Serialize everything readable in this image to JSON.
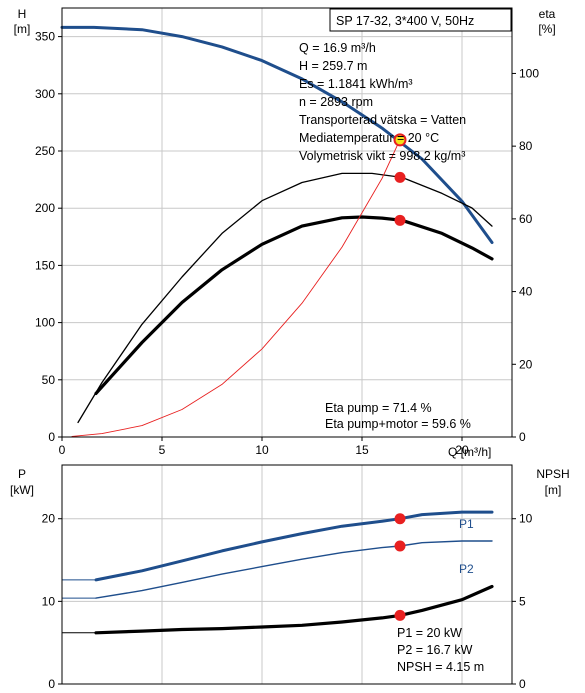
{
  "header": {
    "title": "SP 17-32, 3*400 V, 50Hz"
  },
  "top_chart": {
    "y_left_label": [
      "H",
      "[m]"
    ],
    "y_right_label": [
      "eta",
      "[%]"
    ],
    "x_label": "Q [m³/h]",
    "info_lines": [
      "Q = 16.9 m³/h",
      "H = 259.7 m",
      "Es = 1.1841 kWh/m³",
      "n = 2893 rpm",
      "Transporterad vätska = Vatten",
      "Mediatemperatur = 20 °C",
      "Volymetrisk vikt = 998.2 kg/m³"
    ],
    "eta_lines": [
      "Eta pump = 71.4 %",
      "Eta pump+motor = 59.6 %"
    ]
  },
  "bottom_chart": {
    "y_left_label": [
      "P",
      "[kW]"
    ],
    "y_right_label": [
      "NPSH",
      "[m]"
    ],
    "info_lines": [
      "P1 = 20 kW",
      "P2 = 16.7 kW",
      "NPSH = 4.15 m"
    ]
  },
  "chart_data": [
    {
      "type": "line",
      "title": "SP 17-32, 3*400 V, 50Hz",
      "xlabel": "Q [m³/h]",
      "ylabel": "H [m]",
      "y2label": "eta [%]",
      "xlim": [
        0,
        22.5
      ],
      "ylim": [
        0,
        375
      ],
      "y2lim": [
        0,
        118
      ],
      "xticks": [
        0,
        5,
        10,
        15,
        20
      ],
      "yticks": [
        0,
        50,
        100,
        150,
        200,
        250,
        300,
        350
      ],
      "y2ticks": [
        0,
        20,
        40,
        60,
        80,
        100
      ],
      "grid": true,
      "duty_point": {
        "x": 16.9,
        "H": 259.7,
        "eta_pump": 71.4,
        "eta_pump_motor": 59.6
      },
      "series": [
        {
          "axis": "left",
          "color": "#1f4e8c",
          "width": 3,
          "points": [
            [
              0,
              358
            ],
            [
              1.6,
              358
            ],
            [
              4,
              356
            ],
            [
              6,
              350
            ],
            [
              8,
              341
            ],
            [
              10,
              329
            ],
            [
              12,
              313
            ],
            [
              14,
              293
            ],
            [
              16,
              270
            ],
            [
              18,
              243
            ],
            [
              20,
              206
            ],
            [
              21.5,
              170
            ]
          ]
        },
        {
          "axis": "left",
          "color": "#1f4e8c",
          "width": 1,
          "points": [
            [
              0,
              358
            ],
            [
              1.6,
              358
            ]
          ]
        },
        {
          "axis": "right",
          "color": "#000000",
          "width": 1.3,
          "points": [
            [
              0.8,
              4
            ],
            [
              2,
              15
            ],
            [
              4,
              31
            ],
            [
              6,
              44
            ],
            [
              8,
              56
            ],
            [
              10,
              65
            ],
            [
              12,
              70
            ],
            [
              14,
              72.5
            ],
            [
              15.5,
              72.5
            ],
            [
              17,
              71.4
            ],
            [
              19,
              67
            ],
            [
              20.5,
              63
            ],
            [
              21.5,
              58
            ]
          ]
        },
        {
          "axis": "right",
          "color": "#000000",
          "width": 3.2,
          "points": [
            [
              1.7,
              12
            ],
            [
              4,
              26
            ],
            [
              6,
              37
            ],
            [
              8,
              46
            ],
            [
              10,
              53
            ],
            [
              12,
              58
            ],
            [
              14,
              60.3
            ],
            [
              15,
              60.5
            ],
            [
              16,
              60.2
            ],
            [
              17,
              59.6
            ],
            [
              19,
              56
            ],
            [
              20.5,
              52
            ],
            [
              21.5,
              49
            ]
          ]
        },
        {
          "axis": "left",
          "color": "#e82020",
          "width": 0.9,
          "points": [
            [
              0.5,
              0.5
            ],
            [
              2,
              3
            ],
            [
              4,
              10
            ],
            [
              6,
              24
            ],
            [
              8,
              46
            ],
            [
              10,
              77
            ],
            [
              12,
              117
            ],
            [
              14,
              166
            ],
            [
              16,
              226
            ],
            [
              16.9,
              260
            ],
            [
              17.1,
              263
            ]
          ]
        }
      ],
      "markers": [
        {
          "axis": "right",
          "x": 16.9,
          "y": 71.4,
          "color": "#e82020"
        },
        {
          "axis": "right",
          "x": 16.9,
          "y": 59.6,
          "color": "#e82020"
        }
      ]
    },
    {
      "type": "line",
      "xlim": [
        0,
        22.5
      ],
      "ylim": [
        0,
        26.5
      ],
      "y2lim": [
        0,
        13.25
      ],
      "yticks": [
        0,
        10,
        20
      ],
      "y2ticks": [
        0,
        5,
        10
      ],
      "ylabel": "P [kW]",
      "y2label": "NPSH [m]",
      "grid": true,
      "duty_point": {
        "x": 16.9,
        "P1": 20,
        "P2": 16.7,
        "NPSH": 4.15
      },
      "series": [
        {
          "name": "P1",
          "axis": "left",
          "color": "#1f4e8c",
          "width": 3,
          "points": [
            [
              1.7,
              12.6
            ],
            [
              4,
              13.7
            ],
            [
              6,
              14.9
            ],
            [
              8,
              16.1
            ],
            [
              10,
              17.2
            ],
            [
              12,
              18.2
            ],
            [
              14,
              19.1
            ],
            [
              16,
              19.7
            ],
            [
              16.9,
              20
            ],
            [
              18,
              20.5
            ],
            [
              20,
              20.8
            ],
            [
              21.5,
              20.8
            ]
          ]
        },
        {
          "axis": "left",
          "color": "#1f4e8c",
          "width": 1,
          "points": [
            [
              0,
              12.6
            ],
            [
              1.7,
              12.6
            ]
          ]
        },
        {
          "name": "P2",
          "axis": "left",
          "color": "#1f4e8c",
          "width": 1.4,
          "points": [
            [
              1.7,
              10.4
            ],
            [
              4,
              11.3
            ],
            [
              6,
              12.3
            ],
            [
              8,
              13.3
            ],
            [
              10,
              14.2
            ],
            [
              12,
              15.1
            ],
            [
              14,
              15.9
            ],
            [
              16,
              16.5
            ],
            [
              16.9,
              16.7
            ],
            [
              18,
              17.1
            ],
            [
              20,
              17.3
            ],
            [
              21.5,
              17.3
            ]
          ]
        },
        {
          "axis": "left",
          "color": "#1f4e8c",
          "width": 1,
          "points": [
            [
              0,
              10.4
            ],
            [
              1.7,
              10.4
            ]
          ]
        },
        {
          "axis": "right",
          "color": "#000000",
          "width": 3.2,
          "points": [
            [
              1.7,
              3.1
            ],
            [
              4,
              3.2
            ],
            [
              6,
              3.3
            ],
            [
              8,
              3.35
            ],
            [
              10,
              3.45
            ],
            [
              12,
              3.55
            ],
            [
              14,
              3.75
            ],
            [
              16,
              4.0
            ],
            [
              16.9,
              4.15
            ],
            [
              18,
              4.45
            ],
            [
              20,
              5.1
            ],
            [
              21.5,
              5.9
            ]
          ]
        },
        {
          "axis": "right",
          "color": "#000000",
          "width": 1,
          "points": [
            [
              0,
              3.1
            ],
            [
              1.7,
              3.1
            ]
          ]
        }
      ],
      "markers": [
        {
          "axis": "left",
          "x": 16.9,
          "y": 20,
          "color": "#e82020"
        },
        {
          "axis": "left",
          "x": 16.9,
          "y": 16.7,
          "color": "#e82020"
        },
        {
          "axis": "right",
          "x": 16.9,
          "y": 4.15,
          "color": "#e82020"
        }
      ]
    }
  ]
}
